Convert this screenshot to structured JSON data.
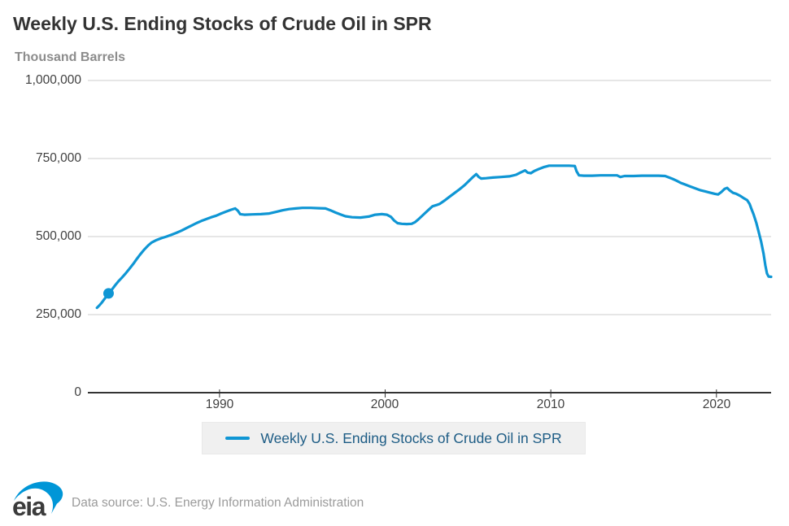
{
  "header": {
    "title": "Weekly U.S. Ending Stocks of Crude Oil in SPR",
    "subtitle": "Thousand Barrels"
  },
  "legend": {
    "label": "Weekly U.S. Ending Stocks of Crude Oil in SPR"
  },
  "footer": {
    "logo_text": "eia",
    "data_source": "Data source: U.S. Energy Information Administration"
  },
  "colors": {
    "line": "#0f96d4",
    "marker": "#0f96d4",
    "gridline": "#cccccc",
    "axis": "#333333",
    "legend_text": "#1d5c85",
    "legend_bg": "#f0f0f0",
    "title_text": "#333333",
    "muted_text": "#8c8c8c",
    "logo_swoosh": "#0096d7",
    "logo_text": "#3b3b3b"
  },
  "chart_data": {
    "type": "line",
    "title": "Weekly U.S. Ending Stocks of Crude Oil in SPR",
    "xlabel": "",
    "ylabel": "Thousand Barrels",
    "grid": true,
    "legend_position": "bottom",
    "xlim": [
      1982.05,
      2023.3
    ],
    "ylim": [
      0,
      1000000
    ],
    "x_ticks": [
      1990,
      2000,
      2010,
      2020
    ],
    "y_ticks": [
      0,
      250000,
      500000,
      750000,
      1000000
    ],
    "y_tick_labels": [
      "0",
      "250,000",
      "500,000",
      "750,000",
      "1,000,000"
    ],
    "marker": {
      "x": 1983.3,
      "y": 318000
    },
    "series": [
      {
        "name": "Weekly U.S. Ending Stocks of Crude Oil in SPR",
        "color": "#0f96d4",
        "points": [
          [
            1982.6,
            272000
          ],
          [
            1982.75,
            280000
          ],
          [
            1982.9,
            289000
          ],
          [
            1983.05,
            300000
          ],
          [
            1983.3,
            318000
          ],
          [
            1983.5,
            330000
          ],
          [
            1983.7,
            344000
          ],
          [
            1983.9,
            357000
          ],
          [
            1984.1,
            368000
          ],
          [
            1984.3,
            380000
          ],
          [
            1984.55,
            396000
          ],
          [
            1984.8,
            413000
          ],
          [
            1985.0,
            428000
          ],
          [
            1985.2,
            442000
          ],
          [
            1985.45,
            458000
          ],
          [
            1985.7,
            472000
          ],
          [
            1985.9,
            481000
          ],
          [
            1986.2,
            489000
          ],
          [
            1986.5,
            495000
          ],
          [
            1986.8,
            500000
          ],
          [
            1987.1,
            506000
          ],
          [
            1987.4,
            512000
          ],
          [
            1987.7,
            519000
          ],
          [
            1988.0,
            527000
          ],
          [
            1988.3,
            535000
          ],
          [
            1988.6,
            543000
          ],
          [
            1988.9,
            550000
          ],
          [
            1989.2,
            556000
          ],
          [
            1989.5,
            562000
          ],
          [
            1989.8,
            567000
          ],
          [
            1990.1,
            574000
          ],
          [
            1990.4,
            580000
          ],
          [
            1990.7,
            586000
          ],
          [
            1990.95,
            590000
          ],
          [
            1991.1,
            583000
          ],
          [
            1991.25,
            572000
          ],
          [
            1991.5,
            570000
          ],
          [
            1992.0,
            571000
          ],
          [
            1992.5,
            572000
          ],
          [
            1993.0,
            574000
          ],
          [
            1993.4,
            579000
          ],
          [
            1993.8,
            584000
          ],
          [
            1994.2,
            588000
          ],
          [
            1994.6,
            590000
          ],
          [
            1995.0,
            592000
          ],
          [
            1995.5,
            592000
          ],
          [
            1996.0,
            591000
          ],
          [
            1996.4,
            590000
          ],
          [
            1996.7,
            584000
          ],
          [
            1997.0,
            577000
          ],
          [
            1997.3,
            571000
          ],
          [
            1997.6,
            565000
          ],
          [
            1998.0,
            562000
          ],
          [
            1998.5,
            561000
          ],
          [
            1999.0,
            564000
          ],
          [
            1999.4,
            570000
          ],
          [
            1999.8,
            572000
          ],
          [
            2000.1,
            570000
          ],
          [
            2000.35,
            563000
          ],
          [
            2000.55,
            551000
          ],
          [
            2000.75,
            543000
          ],
          [
            2001.0,
            541000
          ],
          [
            2001.3,
            540000
          ],
          [
            2001.6,
            541000
          ],
          [
            2001.8,
            546000
          ],
          [
            2002.0,
            555000
          ],
          [
            2002.3,
            570000
          ],
          [
            2002.6,
            585000
          ],
          [
            2002.85,
            597000
          ],
          [
            2003.1,
            601000
          ],
          [
            2003.3,
            605000
          ],
          [
            2003.6,
            616000
          ],
          [
            2003.9,
            628000
          ],
          [
            2004.2,
            640000
          ],
          [
            2004.5,
            652000
          ],
          [
            2004.8,
            665000
          ],
          [
            2005.05,
            678000
          ],
          [
            2005.3,
            691000
          ],
          [
            2005.5,
            700000
          ],
          [
            2005.65,
            691000
          ],
          [
            2005.8,
            686000
          ],
          [
            2006.1,
            687000
          ],
          [
            2006.5,
            689000
          ],
          [
            2007.0,
            691000
          ],
          [
            2007.5,
            693000
          ],
          [
            2007.9,
            698000
          ],
          [
            2008.2,
            706000
          ],
          [
            2008.45,
            712000
          ],
          [
            2008.6,
            705000
          ],
          [
            2008.8,
            703000
          ],
          [
            2009.0,
            710000
          ],
          [
            2009.3,
            717000
          ],
          [
            2009.6,
            723000
          ],
          [
            2009.9,
            727000
          ],
          [
            2010.3,
            727000
          ],
          [
            2010.7,
            727000
          ],
          [
            2011.1,
            727000
          ],
          [
            2011.45,
            726000
          ],
          [
            2011.55,
            710000
          ],
          [
            2011.7,
            696000
          ],
          [
            2012.0,
            695000
          ],
          [
            2012.5,
            695000
          ],
          [
            2013.0,
            696000
          ],
          [
            2013.5,
            696000
          ],
          [
            2014.0,
            696000
          ],
          [
            2014.2,
            691000
          ],
          [
            2014.45,
            694000
          ],
          [
            2015.0,
            694000
          ],
          [
            2015.5,
            695000
          ],
          [
            2016.0,
            695000
          ],
          [
            2016.5,
            695000
          ],
          [
            2016.9,
            694000
          ],
          [
            2017.1,
            690000
          ],
          [
            2017.35,
            685000
          ],
          [
            2017.6,
            679000
          ],
          [
            2017.85,
            672000
          ],
          [
            2018.1,
            667000
          ],
          [
            2018.4,
            661000
          ],
          [
            2018.7,
            655000
          ],
          [
            2019.0,
            649000
          ],
          [
            2019.3,
            645000
          ],
          [
            2019.6,
            641000
          ],
          [
            2019.9,
            637000
          ],
          [
            2020.1,
            635000
          ],
          [
            2020.3,
            643000
          ],
          [
            2020.5,
            653000
          ],
          [
            2020.65,
            656000
          ],
          [
            2020.8,
            648000
          ],
          [
            2021.0,
            640000
          ],
          [
            2021.2,
            637000
          ],
          [
            2021.45,
            630000
          ],
          [
            2021.65,
            623000
          ],
          [
            2021.85,
            617000
          ],
          [
            2022.0,
            605000
          ],
          [
            2022.1,
            590000
          ],
          [
            2022.25,
            570000
          ],
          [
            2022.4,
            545000
          ],
          [
            2022.55,
            515000
          ],
          [
            2022.7,
            483000
          ],
          [
            2022.85,
            444000
          ],
          [
            2022.95,
            408000
          ],
          [
            2023.05,
            382000
          ],
          [
            2023.15,
            372000
          ],
          [
            2023.3,
            371000
          ]
        ]
      }
    ]
  }
}
